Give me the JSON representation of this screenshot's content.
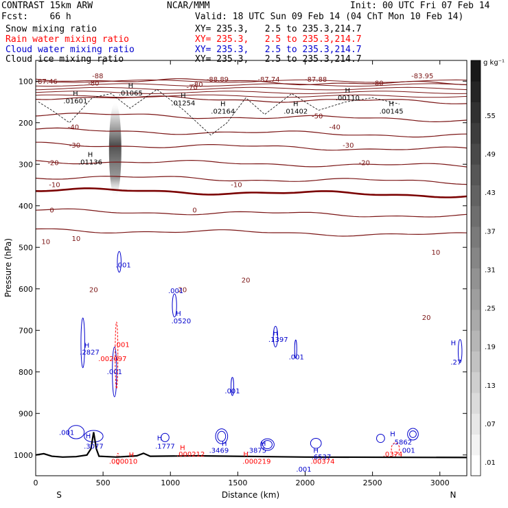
{
  "header": {
    "title": "CONTRAST 15km ARW",
    "center": "NCAR/MMM",
    "init": "Init: 00 UTC Fri 07 Feb 14",
    "fcst": "Fcst:    66 h",
    "valid": "Valid: 18 UTC Sun 09 Feb 14 (04 ChT Mon 10 Feb 14)"
  },
  "legend": [
    {
      "name": "Snow mixing ratio",
      "xy": "XY= 235.3,   2.5 to 235.3,214.7",
      "color": "#000000"
    },
    {
      "name": "Rain water mixing ratio",
      "xy": "XY= 235.3,   2.5 to 235.3,214.7",
      "color": "#ff0000"
    },
    {
      "name": "Cloud water mixing ratio",
      "xy": "XY= 235.3,   2.5 to 235.3,214.7",
      "color": "#0000cc"
    },
    {
      "name": "Cloud ice mixing ratio",
      "xy": "XY= 235.3,   2.5 to 235.3,214.7",
      "color": "#000000"
    }
  ],
  "colors": {
    "temperature": "#7a1414",
    "zero_isotherm": "#7a0000",
    "cloud_water": "#0000cc",
    "rain": "#ff0000",
    "terrain": "#000000"
  },
  "chart_data": {
    "type": "vertical-cross-section",
    "xlabel": "Distance (km)",
    "ylabel": "Pressure (hPa)",
    "xlim": [
      0,
      3200
    ],
    "ylim": [
      1050,
      50
    ],
    "x_ticks": [
      0,
      500,
      1000,
      1500,
      2000,
      2500,
      3000
    ],
    "y_ticks": [
      100,
      200,
      300,
      400,
      500,
      600,
      700,
      800,
      900,
      1000
    ],
    "x_end_labels": {
      "left": "S",
      "right": "N"
    },
    "colorbar": {
      "unit": "g kg⁻¹",
      "labels": [
        ".55",
        ".49",
        ".43",
        ".37",
        ".31",
        ".25",
        ".19",
        ".13",
        ".07",
        ".01"
      ]
    },
    "temperature_isotherms": [
      {
        "value": -80,
        "base_p": 95,
        "label_x": 1720
      },
      {
        "value": -60,
        "base_p": 138,
        "label_x": 1120
      },
      {
        "value": -50,
        "base_p": 180,
        "label_x": 1450
      },
      {
        "value": -40,
        "base_p": 218,
        "label_x": 1600
      },
      {
        "value": -30,
        "base_p": 252,
        "label_x": 1600
      },
      {
        "value": -20,
        "base_p": 292,
        "label_x": 1640
      },
      {
        "value": -10,
        "base_p": 330,
        "label_x": 2400
      },
      {
        "value": 0,
        "base_p": 362,
        "label_x": 2720
      },
      {
        "value": 10,
        "base_p": 412,
        "label_x": 1560
      },
      {
        "value": 20,
        "base_p": 458,
        "label_x": 1940
      }
    ],
    "temperature_labels": [
      {
        "x": 80,
        "p": 106,
        "text": "-87.46"
      },
      {
        "x": 460,
        "p": 93,
        "text": "-88"
      },
      {
        "x": 1350,
        "p": 101,
        "text": "-88.89"
      },
      {
        "x": 1730,
        "p": 101,
        "text": "-87.74"
      },
      {
        "x": 2080,
        "p": 101,
        "text": "-87.88"
      },
      {
        "x": 2870,
        "p": 93,
        "text": "-83.95"
      },
      {
        "x": 430,
        "p": 110,
        "text": "-80"
      },
      {
        "x": 2540,
        "p": 110,
        "text": "-80"
      },
      {
        "x": 1200,
        "p": 114,
        "text": "-80"
      },
      {
        "x": 1160,
        "p": 120,
        "text": "-70"
      },
      {
        "x": 2090,
        "p": 190,
        "text": "-50"
      },
      {
        "x": 280,
        "p": 216,
        "text": "-40"
      },
      {
        "x": 2220,
        "p": 216,
        "text": "-40"
      },
      {
        "x": 290,
        "p": 260,
        "text": "-30"
      },
      {
        "x": 2320,
        "p": 260,
        "text": "-30"
      },
      {
        "x": 130,
        "p": 302,
        "text": "-20"
      },
      {
        "x": 2440,
        "p": 302,
        "text": "-20"
      },
      {
        "x": 140,
        "p": 355,
        "text": "-10"
      },
      {
        "x": 1490,
        "p": 355,
        "text": "-10"
      },
      {
        "x": 120,
        "p": 416,
        "text": "0"
      },
      {
        "x": 1180,
        "p": 416,
        "text": "0"
      },
      {
        "x": 75,
        "p": 492,
        "text": "10"
      },
      {
        "x": 2970,
        "p": 518,
        "text": "10"
      },
      {
        "x": 300,
        "p": 485,
        "text": "10"
      },
      {
        "x": 430,
        "p": 608,
        "text": "20"
      },
      {
        "x": 1090,
        "p": 608,
        "text": "20"
      },
      {
        "x": 1560,
        "p": 585,
        "text": "20"
      },
      {
        "x": 2900,
        "p": 675,
        "text": "20"
      }
    ],
    "maxima_labels": [
      {
        "x": 295,
        "p": 135,
        "text": "H",
        "value": ".01601"
      },
      {
        "x": 705,
        "p": 116,
        "text": "H",
        "value": ".01065"
      },
      {
        "x": 1095,
        "p": 140,
        "text": "H",
        "value": ".01254"
      },
      {
        "x": 1390,
        "p": 160,
        "text": "H",
        "value": ".02164"
      },
      {
        "x": 1930,
        "p": 160,
        "text": "H",
        "value": ".01402"
      },
      {
        "x": 2315,
        "p": 128,
        "text": "H",
        "value": ".00110"
      },
      {
        "x": 2640,
        "p": 160,
        "text": "H",
        "value": ".00145"
      },
      {
        "x": 405,
        "p": 282,
        "text": "H",
        "value": ".01136"
      }
    ],
    "cloud_water_labels": [
      {
        "x": 650,
        "p": 548,
        "text": ".001"
      },
      {
        "x": 1040,
        "p": 610,
        "text": ".001"
      },
      {
        "x": 1060,
        "p": 665,
        "text": "H"
      },
      {
        "x": 1080,
        "p": 683,
        "text": ".0520"
      },
      {
        "x": 1780,
        "p": 712,
        "text": "H"
      },
      {
        "x": 1800,
        "p": 728,
        "text": ".1397"
      },
      {
        "x": 1935,
        "p": 770,
        "text": ".001"
      },
      {
        "x": 380,
        "p": 742,
        "text": "H"
      },
      {
        "x": 400,
        "p": 758,
        "text": ".2827"
      },
      {
        "x": 585,
        "p": 805,
        "text": ".001"
      },
      {
        "x": 1460,
        "p": 852,
        "text": ".001"
      },
      {
        "x": 3100,
        "p": 736,
        "text": "H"
      },
      {
        "x": 3120,
        "p": 782,
        "text": ".27"
      },
      {
        "x": 230,
        "p": 952,
        "text": ".001"
      },
      {
        "x": 390,
        "p": 960,
        "text": "H"
      },
      {
        "x": 430,
        "p": 985,
        "text": ".3077"
      },
      {
        "x": 920,
        "p": 965,
        "text": "H"
      },
      {
        "x": 960,
        "p": 985,
        "text": ".1777"
      },
      {
        "x": 1400,
        "p": 978,
        "text": "H"
      },
      {
        "x": 1360,
        "p": 995,
        "text": ".3469"
      },
      {
        "x": 1690,
        "p": 978,
        "text": "H"
      },
      {
        "x": 1640,
        "p": 995,
        "text": ".3875"
      },
      {
        "x": 2080,
        "p": 995,
        "text": "H"
      },
      {
        "x": 2120,
        "p": 1010,
        "text": ".6537"
      },
      {
        "x": 1990,
        "p": 1040,
        "text": ".001"
      },
      {
        "x": 2650,
        "p": 955,
        "text": "H"
      },
      {
        "x": 2720,
        "p": 975,
        "text": ".5862"
      },
      {
        "x": 2760,
        "p": 995,
        "text": ".001"
      }
    ],
    "rain_labels": [
      {
        "x": 640,
        "p": 740,
        "text": ".001"
      },
      {
        "x": 570,
        "p": 774,
        "text": ".002097"
      },
      {
        "x": 710,
        "p": 1005,
        "text": "H"
      },
      {
        "x": 650,
        "p": 1021,
        "text": ".000010"
      },
      {
        "x": 1090,
        "p": 988,
        "text": "H"
      },
      {
        "x": 1150,
        "p": 1004,
        "text": ".000212"
      },
      {
        "x": 1560,
        "p": 1004,
        "text": "H"
      },
      {
        "x": 1640,
        "p": 1021,
        "text": ".000219"
      },
      {
        "x": 2130,
        "p": 1021,
        "text": ".00374"
      },
      {
        "x": 2650,
        "p": 1004,
        "text": ".0374"
      }
    ]
  }
}
